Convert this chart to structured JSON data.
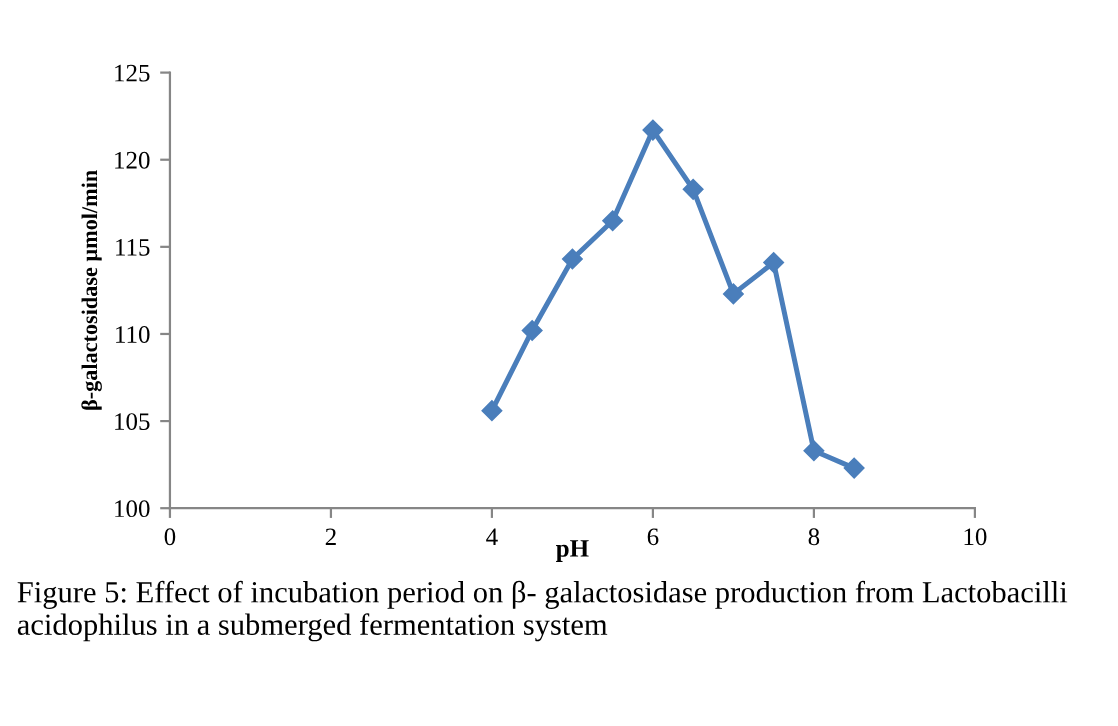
{
  "chart_data": {
    "type": "line",
    "xlabel": "pH",
    "ylabel": "β-galactosidase µmol/min",
    "x": [
      4,
      4.5,
      5,
      5.5,
      6,
      6.5,
      7,
      7.5,
      8,
      8.5
    ],
    "series": [
      {
        "color": "#4a7ebb",
        "values": [
          105.6,
          110.2,
          114.3,
          116.5,
          121.7,
          118.3,
          112.3,
          114.1,
          103.3,
          102.3
        ]
      }
    ],
    "xlim": [
      0,
      10
    ],
    "xticks": [
      0,
      2,
      4,
      6,
      8,
      10
    ],
    "ylim": [
      100,
      125
    ],
    "yticks": [
      100,
      105,
      110,
      115,
      120,
      125
    ],
    "marker": "diamond",
    "line_style": "solid",
    "grid": false,
    "annotations": [
      "Figure 5: Effect of incubation period on β- galactosidase production from Lactobacilli acidophilus in a submerged fermentation system"
    ]
  }
}
